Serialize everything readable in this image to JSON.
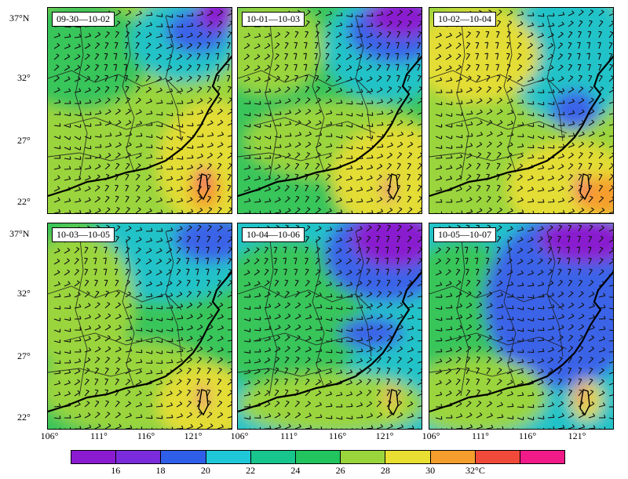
{
  "figure": {
    "panels": [
      {
        "date_label": "09-30—10-02",
        "style": "warm-north-cool"
      },
      {
        "date_label": "10-01—10-03",
        "style": "green-northeast-cold"
      },
      {
        "date_label": "10-02—10-04",
        "style": "yellow-green"
      },
      {
        "date_label": "10-03—10-05",
        "style": "green-cyan"
      },
      {
        "date_label": "10-04—10-06",
        "style": "cyan-northeast-cold"
      },
      {
        "date_label": "10-05—10-07",
        "style": "blue-dominant"
      }
    ],
    "y_axis_labels_top": [
      "37°N",
      "32°",
      "27°",
      "22°"
    ],
    "y_axis_labels_bottom": [
      "37°N",
      "32°",
      "27°",
      "22°"
    ],
    "x_axis_labels": [
      "106°",
      "111°",
      "116°",
      "121°"
    ],
    "x_axis_groups": 3
  },
  "colorbar": {
    "colors": [
      "#8a1bd0",
      "#7a2cdc",
      "#2f5ee8",
      "#1ec8d8",
      "#18c58c",
      "#21c45e",
      "#9ad53c",
      "#e8df32",
      "#f59e2e",
      "#f24a3a",
      "#f01a88"
    ],
    "labels": [
      "16",
      "18",
      "20",
      "22",
      "24",
      "26",
      "28",
      "30",
      "32°C"
    ]
  },
  "legend_colors": {
    "purple": "#8a1bd0",
    "blue": "#3b63e8",
    "cyan": "#22c3c8",
    "teal": "#24c48f",
    "green": "#38c55a",
    "lime": "#9ad53c",
    "yellow": "#e3dd36",
    "orange": "#f59e2e",
    "red": "#f24a3a",
    "magenta": "#f01a88"
  }
}
